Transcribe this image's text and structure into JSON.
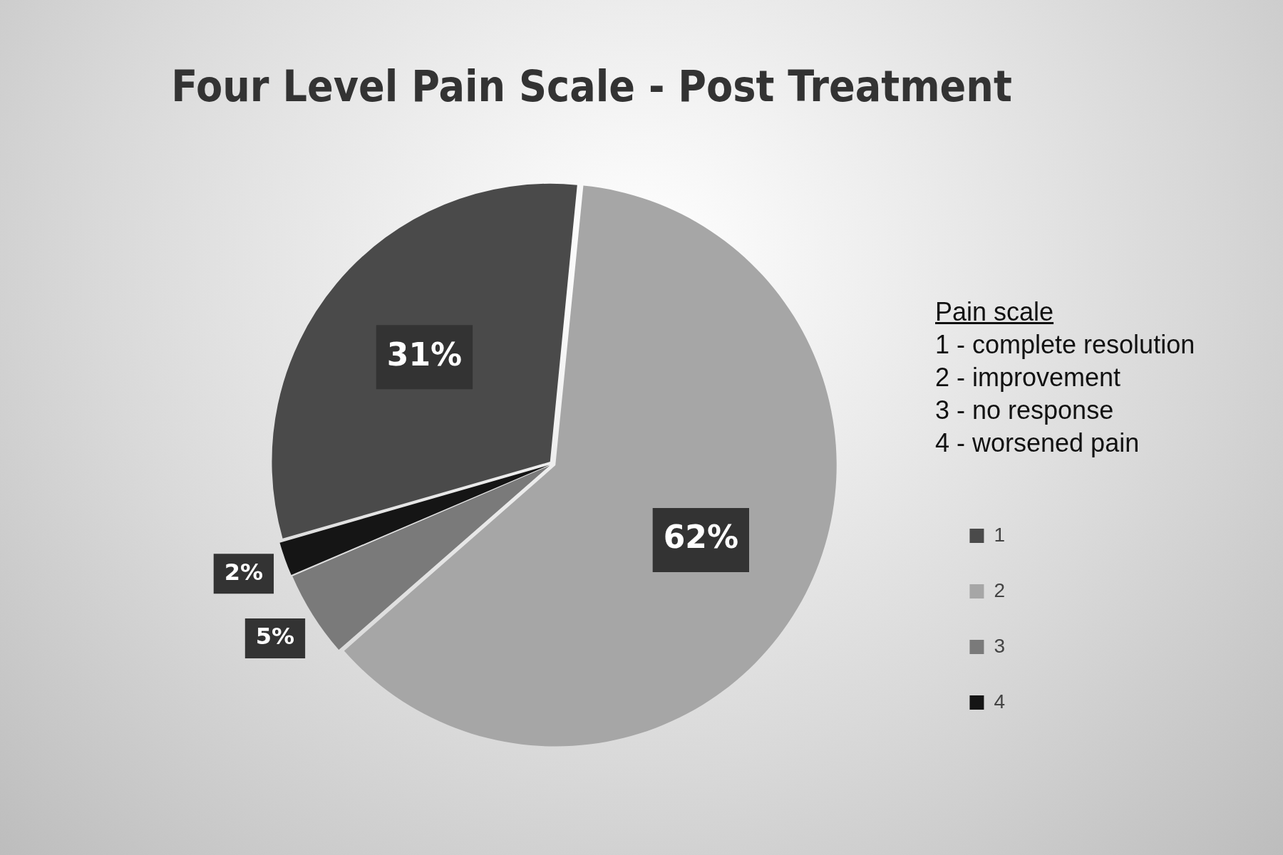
{
  "chart_data": {
    "type": "pie",
    "title": "Four Level Pain Scale - Post Treatment",
    "categories": [
      "1",
      "2",
      "3",
      "4"
    ],
    "values": [
      31,
      62,
      5,
      2
    ],
    "colors": [
      "#4a4a4a",
      "#a6a6a6",
      "#7a7a7a",
      "#151515"
    ],
    "value_labels": [
      "31%",
      "62%",
      "5%",
      "2%"
    ],
    "legend": "right",
    "annotations": [
      "Pain scale",
      "1 - complete resolution",
      "2 - improvement",
      "3 - no response",
      "4 - worsened pain"
    ]
  }
}
